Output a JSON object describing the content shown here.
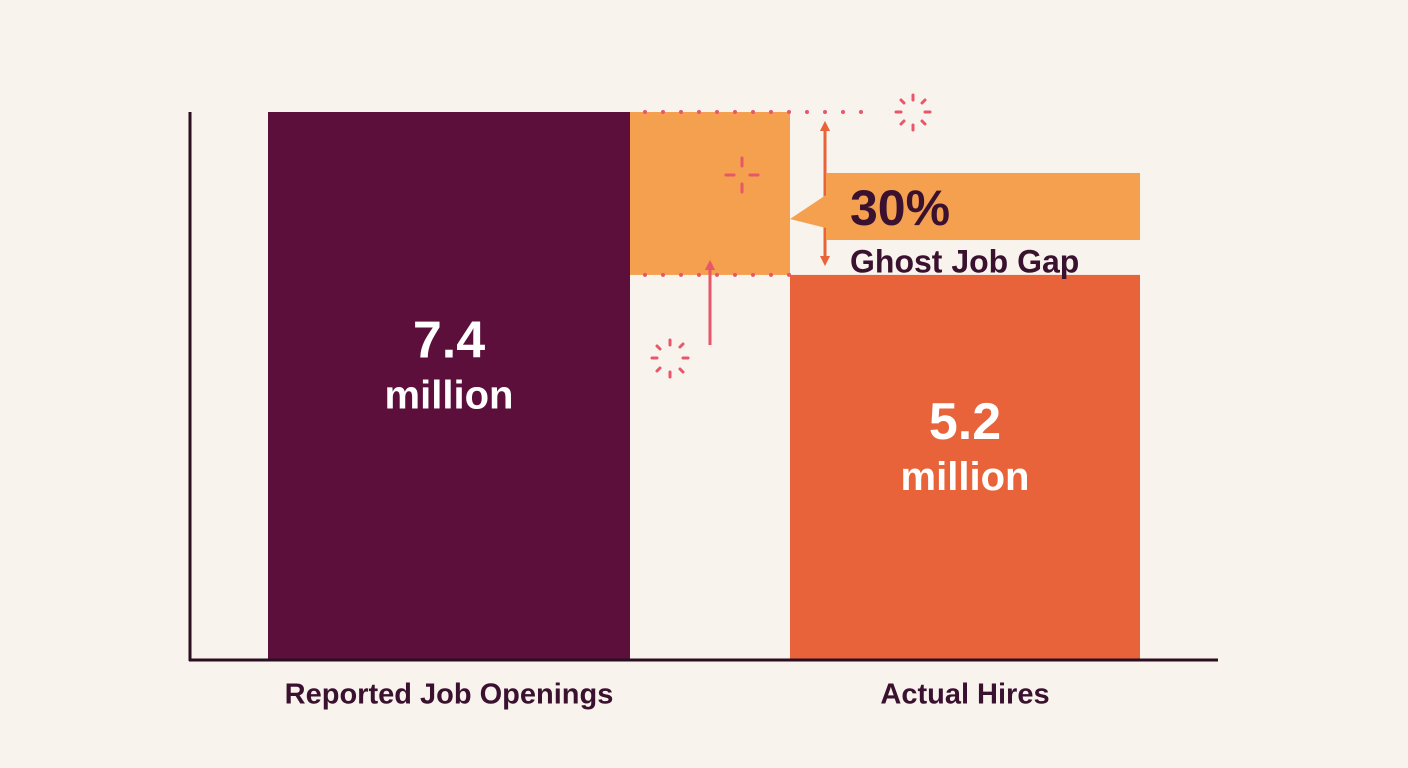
{
  "chart_data": {
    "type": "bar",
    "categories": [
      "Reported Job Openings",
      "Actual Hires"
    ],
    "values": [
      7.4,
      5.2
    ],
    "value_labels": [
      "7.4",
      "5.2"
    ],
    "value_unit": "million",
    "colors": [
      "#5c0f3a",
      "#e8623a"
    ],
    "gap_color": "#f5a04e",
    "ylim": [
      0,
      7.4
    ],
    "annotation": {
      "label": "30%",
      "text": "Ghost Job Gap"
    }
  }
}
